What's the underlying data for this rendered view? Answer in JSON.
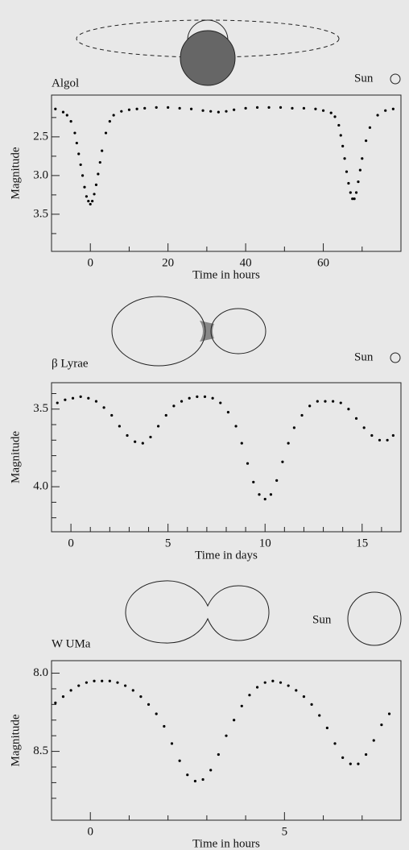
{
  "chart_data": [
    {
      "type": "scatter",
      "title": "Algol",
      "annotation": "Sun",
      "x_label": "Time in hours",
      "y_label": "Magnitude",
      "color": "#000000",
      "y_inverted": true,
      "xlim": [
        -10,
        80
      ],
      "xticks": [
        0,
        20,
        40,
        60
      ],
      "xminorticks": [
        -10,
        10,
        30,
        50,
        70
      ],
      "ylim": [
        1.96,
        3.98
      ],
      "yticks": [
        2.5,
        {
          "value": 3,
          "label": "3.0"
        },
        3.5
      ],
      "yminorticks": [
        2.25,
        2.75,
        3.25,
        3.75
      ],
      "x": [
        -9,
        -7,
        -6,
        -5,
        -4,
        -3.5,
        -3,
        -2.5,
        -2,
        -1.5,
        -1,
        -0.5,
        0,
        0.5,
        1,
        1.5,
        2,
        2.5,
        3,
        4,
        5,
        6,
        8,
        10,
        12,
        14,
        17,
        20,
        23,
        26,
        29,
        31,
        33,
        35,
        37,
        40,
        43,
        46,
        49,
        52,
        55,
        58,
        60,
        62,
        63,
        64,
        64.5,
        65,
        65.5,
        66,
        66.5,
        67,
        67.5,
        68,
        68.5,
        69,
        69.5,
        70,
        71,
        72,
        74,
        76,
        78
      ],
      "values": [
        2.14,
        2.18,
        2.22,
        2.3,
        2.45,
        2.58,
        2.72,
        2.86,
        3.0,
        3.15,
        3.27,
        3.33,
        3.37,
        3.33,
        3.24,
        3.12,
        2.98,
        2.83,
        2.68,
        2.45,
        2.3,
        2.22,
        2.17,
        2.15,
        2.14,
        2.13,
        2.12,
        2.12,
        2.13,
        2.14,
        2.16,
        2.17,
        2.18,
        2.17,
        2.15,
        2.13,
        2.12,
        2.12,
        2.12,
        2.13,
        2.13,
        2.14,
        2.16,
        2.19,
        2.24,
        2.35,
        2.48,
        2.62,
        2.78,
        2.95,
        3.1,
        3.22,
        3.3,
        3.3,
        3.22,
        3.08,
        2.93,
        2.78,
        2.55,
        2.38,
        2.22,
        2.16,
        2.14
      ]
    },
    {
      "type": "scatter",
      "title": "β Lyrae",
      "annotation": "Sun",
      "x_label": "Time in days",
      "y_label": "Magnitude",
      "color": "#000000",
      "y_inverted": true,
      "xlim": [
        -1,
        17
      ],
      "xticks": [
        0,
        5,
        10,
        15
      ],
      "xminorticks": [
        1,
        2,
        3,
        4,
        6,
        7,
        8,
        9,
        11,
        12,
        13,
        14,
        16
      ],
      "ylim": [
        3.33,
        4.29
      ],
      "yticks": [
        3.5,
        {
          "value": 4,
          "label": "4.0"
        }
      ],
      "yminorticks": [
        3.4,
        3.6,
        3.7,
        3.8,
        3.9,
        4.1,
        4.2
      ],
      "x": [
        -0.7,
        -0.3,
        0.1,
        0.5,
        0.9,
        1.3,
        1.7,
        2.1,
        2.5,
        2.9,
        3.3,
        3.7,
        4.1,
        4.5,
        4.9,
        5.3,
        5.7,
        6.1,
        6.5,
        6.9,
        7.3,
        7.7,
        8.1,
        8.5,
        8.8,
        9.1,
        9.4,
        9.7,
        10.0,
        10.3,
        10.6,
        10.9,
        11.2,
        11.5,
        11.9,
        12.3,
        12.7,
        13.1,
        13.5,
        13.9,
        14.3,
        14.7,
        15.1,
        15.5,
        15.9,
        16.3,
        16.6
      ],
      "values": [
        3.46,
        3.44,
        3.43,
        3.42,
        3.43,
        3.45,
        3.49,
        3.54,
        3.61,
        3.67,
        3.71,
        3.72,
        3.68,
        3.61,
        3.54,
        3.48,
        3.45,
        3.43,
        3.42,
        3.42,
        3.43,
        3.46,
        3.52,
        3.61,
        3.72,
        3.85,
        3.97,
        4.05,
        4.08,
        4.05,
        3.96,
        3.84,
        3.72,
        3.62,
        3.54,
        3.48,
        3.45,
        3.45,
        3.45,
        3.46,
        3.5,
        3.56,
        3.62,
        3.67,
        3.7,
        3.7,
        3.67
      ]
    },
    {
      "type": "scatter",
      "title": "W UMa",
      "annotation": "Sun",
      "x_label": "Time in hours",
      "y_label": "Magnitude",
      "color": "#000000",
      "y_inverted": true,
      "xlim": [
        -1,
        8
      ],
      "xticks": [
        0,
        5
      ],
      "xminorticks": [
        1,
        2,
        3,
        4,
        6,
        7
      ],
      "ylim": [
        7.92,
        8.94
      ],
      "yticks": [
        {
          "value": 8,
          "label": "8.0"
        },
        8.5
      ],
      "yminorticks": [
        8.1,
        8.2,
        8.3,
        8.4,
        8.6,
        8.7,
        8.8
      ],
      "x": [
        -0.9,
        -0.7,
        -0.5,
        -0.3,
        -0.1,
        0.1,
        0.3,
        0.5,
        0.7,
        0.9,
        1.1,
        1.3,
        1.5,
        1.7,
        1.9,
        2.1,
        2.3,
        2.5,
        2.7,
        2.9,
        3.1,
        3.3,
        3.5,
        3.7,
        3.9,
        4.1,
        4.3,
        4.5,
        4.7,
        4.9,
        5.1,
        5.3,
        5.5,
        5.7,
        5.9,
        6.1,
        6.3,
        6.5,
        6.7,
        6.9,
        7.1,
        7.3,
        7.5,
        7.7
      ],
      "values": [
        8.19,
        8.15,
        8.11,
        8.08,
        8.06,
        8.05,
        8.05,
        8.05,
        8.06,
        8.08,
        8.11,
        8.15,
        8.2,
        8.26,
        8.34,
        8.45,
        8.56,
        8.65,
        8.69,
        8.68,
        8.62,
        8.52,
        8.4,
        8.3,
        8.21,
        8.14,
        8.09,
        8.06,
        8.05,
        8.06,
        8.08,
        8.11,
        8.15,
        8.2,
        8.27,
        8.35,
        8.45,
        8.54,
        8.58,
        8.58,
        8.52,
        8.43,
        8.33,
        8.26
      ]
    }
  ]
}
